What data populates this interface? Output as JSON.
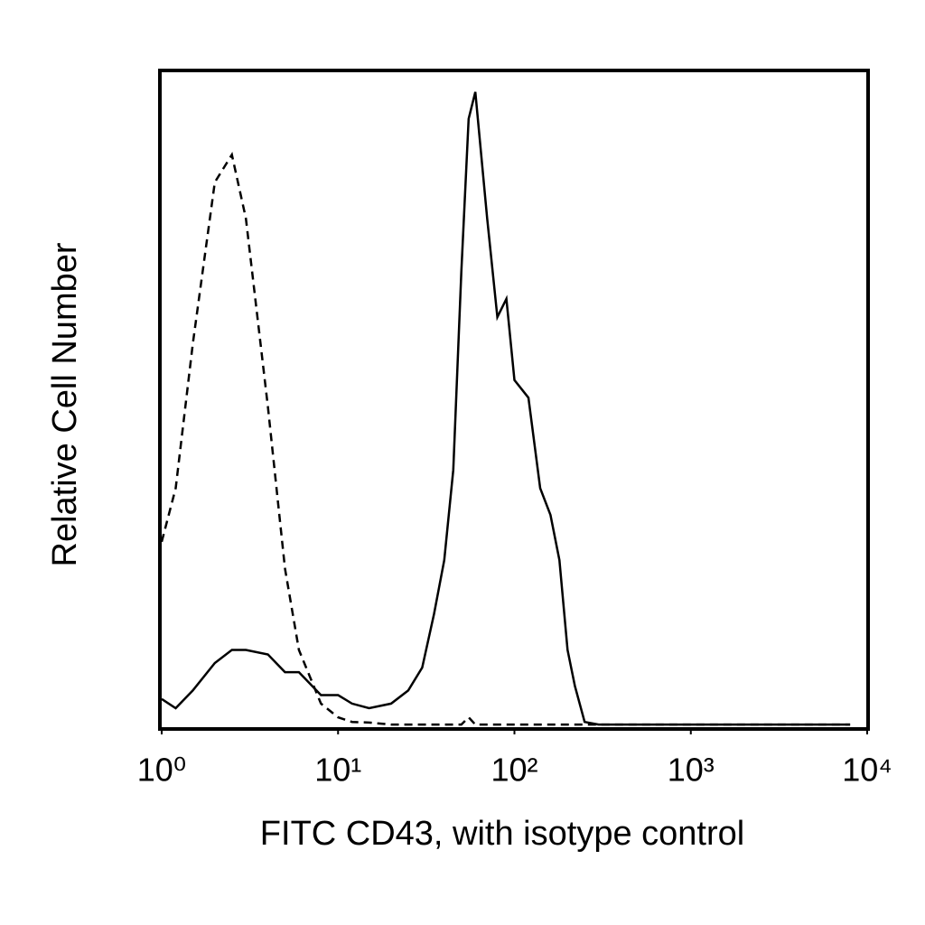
{
  "chart_data": {
    "type": "line",
    "x_label": "FITC CD43, with isotype control",
    "y_label": "Relative Cell Number",
    "x_scale": "log",
    "xlim": [
      1,
      10000
    ],
    "ylim": [
      0,
      100
    ],
    "xticks": [
      {
        "value": 1,
        "label": "10⁰"
      },
      {
        "value": 10,
        "label": "10¹"
      },
      {
        "value": 100,
        "label": "10²"
      },
      {
        "value": 1000,
        "label": "10³"
      },
      {
        "value": 10000,
        "label": "10⁴"
      }
    ],
    "grid": false,
    "x": [
      1,
      1.2,
      1.5,
      2,
      2.5,
      3,
      4,
      5,
      6,
      8,
      10,
      12,
      15,
      20,
      25,
      30,
      35,
      40,
      45,
      50,
      55,
      60,
      70,
      80,
      90,
      100,
      120,
      140,
      160,
      180,
      200,
      220,
      250,
      300,
      500,
      1000,
      5000,
      8000
    ],
    "series": [
      {
        "color": "#000000",
        "line_style": "solid",
        "values": [
          4.3,
          2.9,
          5.6,
          9.8,
          11.8,
          11.8,
          11.1,
          8.4,
          8.4,
          4.9,
          4.9,
          3.6,
          2.9,
          3.6,
          5.6,
          9.1,
          17.3,
          25.5,
          39.3,
          69.5,
          92.9,
          97.0,
          77.7,
          62.6,
          65.4,
          53.0,
          50.3,
          36.5,
          32.4,
          25.5,
          11.8,
          6.3,
          0.8,
          0.4,
          0.4,
          0.4,
          0.4,
          0.4
        ]
      },
      {
        "color": "#000000",
        "line_style": "dashed",
        "values": [
          28.3,
          36.5,
          58.5,
          83.2,
          87.4,
          77.7,
          48.9,
          24.2,
          11.8,
          3.6,
          1.5,
          0.8,
          0.7,
          0.4,
          0.4,
          0.4,
          0.4,
          0.4,
          0.4,
          0.4,
          1.5,
          0.4,
          0.4,
          0.4,
          0.4,
          0.4,
          0.4,
          0.4,
          0.4,
          0.4,
          0.4,
          0.4,
          0.4,
          0.4,
          0.4,
          0.4,
          0.4,
          0.4
        ]
      }
    ]
  }
}
